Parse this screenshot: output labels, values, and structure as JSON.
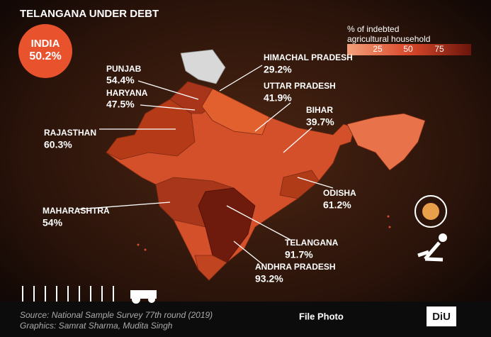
{
  "header": {
    "title": "TELANGANA UNDER DEBT"
  },
  "legend": {
    "title_lines": [
      "% of indebted",
      "agricultural household"
    ],
    "ticks": [
      "25",
      "50",
      "75"
    ]
  },
  "national": {
    "label": "INDIA",
    "value": "50.2%"
  },
  "states": [
    {
      "name": "PUNJAB",
      "value": "54.4%"
    },
    {
      "name": "HARYANA",
      "value": "47.5%"
    },
    {
      "name": "RAJASTHAN",
      "value": "60.3%"
    },
    {
      "name": "HIMACHAL PRADESH",
      "value": "29.2%"
    },
    {
      "name": "UTTAR PRADESH",
      "value": "41.9%"
    },
    {
      "name": "BIHAR",
      "value": "39.7%"
    },
    {
      "name": "ODISHA",
      "value": "61.2%"
    },
    {
      "name": "MAHARASHTRA",
      "value": "54%"
    },
    {
      "name": "TELANGANA",
      "value": "91.7%"
    },
    {
      "name": "ANDHRA PRADESH",
      "value": "93.2%"
    }
  ],
  "footer": {
    "source": "Source: National Sample Survey 77th round (2019)",
    "credits": "Graphics: Samrat Sharma, Mudita Singh",
    "photo_note": "File Photo",
    "logo": "DiU"
  }
}
